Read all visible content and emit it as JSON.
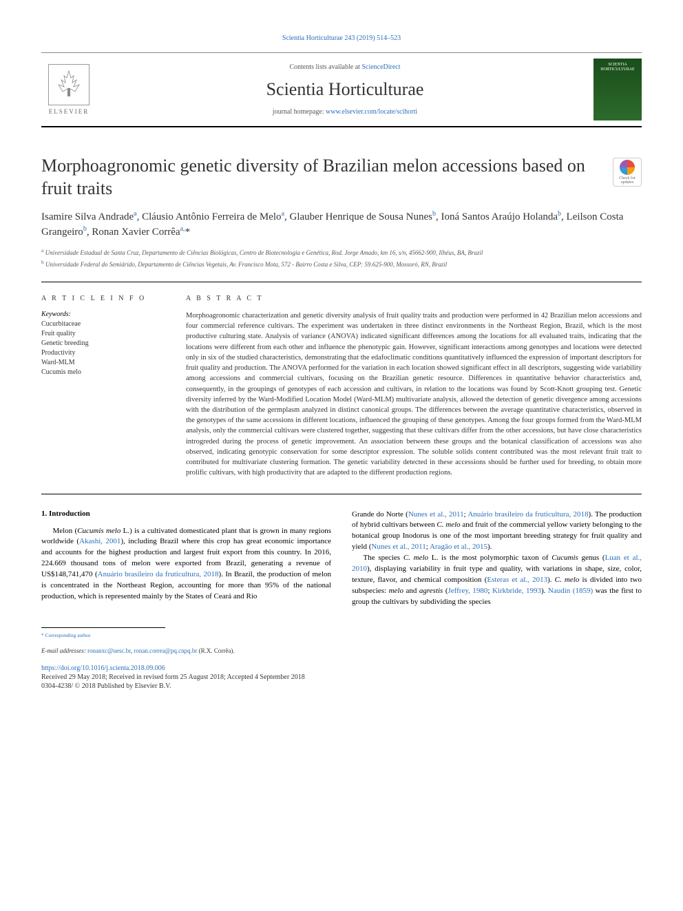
{
  "top_citation": "Scientia Horticulturae 243 (2019) 514–523",
  "header": {
    "publisher": "ELSEVIER",
    "contents_text": "Contents lists available at ",
    "contents_link": "ScienceDirect",
    "journal_name": "Scientia Horticulturae",
    "homepage_text": "journal homepage: ",
    "homepage_link": "www.elsevier.com/locate/scihorti",
    "cover_label_1": "SCIENTIA",
    "cover_label_2": "HORTICULTURAE"
  },
  "crossmark": {
    "line1": "Check for",
    "line2": "updates"
  },
  "title": "Morphoagronomic genetic diversity of Brazilian melon accessions based on fruit traits",
  "authors_html": "Isamire Silva Andrade<sup>a</sup>, Cláusio Antônio Ferreira de Melo<sup>a</sup>, Glauber Henrique de Sousa Nunes<sup>b</sup>, Ioná Santos Araújo Holanda<sup>b</sup>, Leilson Costa Grangeiro<sup>b</sup>, Ronan Xavier Corrêa<sup>a,</sup>*",
  "affiliations": {
    "a": "Universidade Estadual de Santa Cruz, Departamento de Ciências Biológicas, Centro de Biotecnologia e Genética, Rod. Jorge Amado, km 16, s/n, 45662-900, Ilhéus, BA, Brazil",
    "b": "Universidade Federal do Semiárido, Departamento de Ciências Vegetais, Av. Francisco Mota, 572 - Bairro Costa e Silva, CEP: 59.625-900, Mossoró, RN, Brazil"
  },
  "article_info_label": "A R T I C L E  I N F O",
  "abstract_label": "A B S T R A C T",
  "keywords_label": "Keywords:",
  "keywords": [
    "Cucurbitaceae",
    "Fruit quality",
    "Genetic breeding",
    "Productivity",
    "Ward-MLM",
    "Cucumis melo"
  ],
  "abstract": "Morphoagronomic characterization and genetic diversity analysis of fruit quality traits and production were performed in 42 Brazilian melon accessions and four commercial reference cultivars. The experiment was undertaken in three distinct environments in the Northeast Region, Brazil, which is the most productive culturing state. Analysis of variance (ANOVA) indicated significant differences among the locations for all evaluated traits, indicating that the locations were different from each other and influence the phenotypic gain. However, significant interactions among genotypes and locations were detected only in six of the studied characteristics, demonstrating that the edafoclimatic conditions quantitatively influenced the expression of important descriptors for fruit quality and production. The ANOVA performed for the variation in each location showed significant effect in all descriptors, suggesting wide variability among accessions and commercial cultivars, focusing on the Brazilian genetic resource. Differences in quantitative behavior characteristics and, consequently, in the groupings of genotypes of each accession and cultivars, in relation to the locations was found by Scott-Knott grouping test. Genetic diversity inferred by the Ward-Modified Location Model (Ward-MLM) multivariate analysis, allowed the detection of genetic divergence among accessions with the distribution of the germplasm analyzed in distinct canonical groups. The differences between the average quantitative characteristics, observed in the genotypes of the same accessions in different locations, influenced the grouping of these genotypes. Among the four groups formed from the Ward-MLM analysis, only the commercial cultivars were clustered together, suggesting that these cultivars differ from the other accessions, but have close characteristics introgreded during the process of genetic improvement. An association between these groups and the botanical classification of accessions was also observed, indicating genotypic conservation for some descriptor expression. The soluble solids content contributed was the most relevant fruit trait to contributed for multivariate clustering formation. The genetic variability detected in these accessions should be further used for breeding, to obtain more prolific cultivars, with high productivity that are adapted to the different production regions.",
  "intro_heading": "1. Introduction",
  "intro_col1_html": "Melon (<em>Cucumis melo</em> L.) is a cultivated domesticated plant that is grown in many regions worldwide (<a>Akashi, 2001</a>), including Brazil where this crop has great economic importance and accounts for the highest production and largest fruit export from this country. In 2016, 224.669 thousand tons of melon were exported from Brazil, generating a revenue of US$148,741,470 (<a>Anuário brasileiro da fruticultura, 2018</a>). In Brazil, the production of melon is concentrated in the Northeast Region, accounting for more than 95% of the national production, which is represented mainly by the States of Ceará and Rio",
  "intro_col2_p1_html": "Grande do Norte (<a>Nunes et al., 2011</a>; <a>Anuário brasileiro da fruticultura, 2018</a>). The production of hybrid cultivars between <em>C. melo</em> and fruit of the commercial yellow variety belonging to the botanical group Inodorus is one of the most important breeding strategy for fruit quality and yield (<a>Nunes et al., 2011</a>; <a>Aragão et al., 2015</a>).",
  "intro_col2_p2_html": "The species <em>C. melo</em> L. is the most polymorphic taxon of <em>Cucumis</em> genus (<a>Luan et al., 2010</a>), displaying variability in fruit type and quality, with variations in shape, size, color, texture, flavor, and chemical composition (<a>Esteras et al., 2013</a>). <em>C. melo</em> is divided into two subspecies: <em>melo</em> and <em>agrestis</em> (<a>Jeffrey, 1980</a>; <a>Kirkbride, 1993</a>). <a>Naudin (1859)</a> was the first to group the cultivars by subdividing the species",
  "footer": {
    "corresponding": "* Corresponding author.",
    "email_label": "E-mail addresses: ",
    "email1": "ronanxc@uesc.br",
    "email2": "ronan.correa@pq.cnpq.br",
    "email_paren": " (R.X. Corrêa).",
    "doi": "https://doi.org/10.1016/j.scienta.2018.09.006",
    "received": "Received 29 May 2018; Received in revised form 25 August 2018; Accepted 4 September 2018",
    "copyright": "0304-4238/ © 2018 Published by Elsevier B.V."
  },
  "colors": {
    "link": "#2a6ebb",
    "text": "#333333",
    "muted": "#555555",
    "cover_bg": "#1a4d1a"
  },
  "typography": {
    "title_size_pt": 20,
    "journal_size_pt": 20,
    "body_size_pt": 8,
    "abstract_size_pt": 8,
    "font_family": "Georgia, serif"
  }
}
